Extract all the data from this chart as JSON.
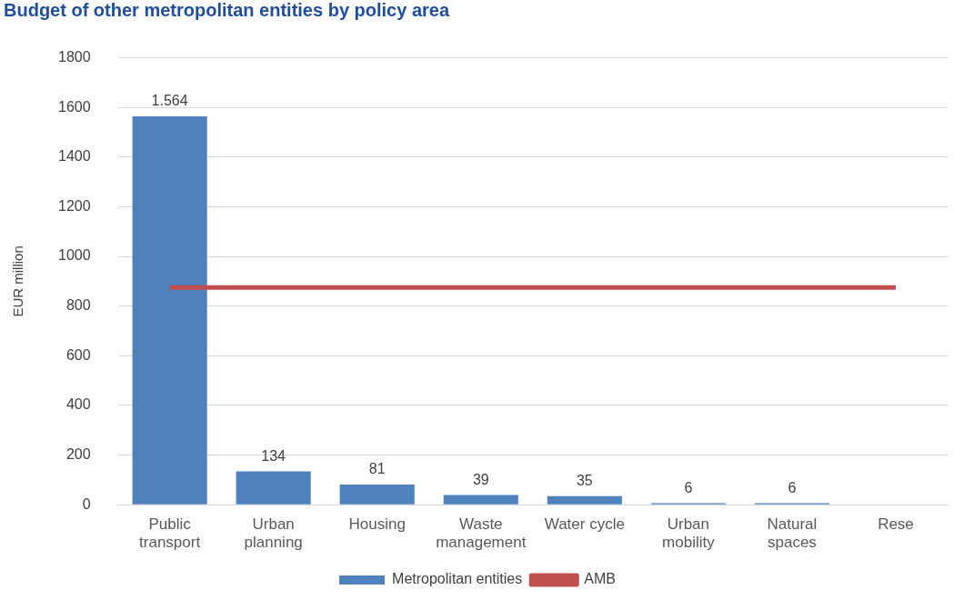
{
  "chart_data": {
    "type": "bar",
    "title": "Budget of other metropolitan entities by policy area",
    "ylabel": "EUR million",
    "categories": [
      "Public\ntransport",
      "Urban\nplanning",
      "Housing",
      "Waste\nmanagement",
      "Water cycle",
      "Urban\nmobility",
      "Natural\nspaces",
      "Rese"
    ],
    "series": [
      {
        "name": "Metropolitan entities",
        "color": "#4f81bd",
        "values": [
          1564,
          134,
          81,
          39,
          35,
          6,
          6,
          null
        ],
        "value_labels": [
          "1.564",
          "134",
          "81",
          "39",
          "35",
          "6",
          "6",
          null
        ]
      },
      {
        "name": "AMB",
        "type": "line",
        "color": "#c0504d",
        "values": [
          875,
          875,
          875,
          875,
          875,
          875,
          875,
          875
        ]
      }
    ],
    "ylim": [
      0,
      1800
    ],
    "yticks": [
      0,
      200,
      400,
      600,
      800,
      1000,
      1200,
      1400,
      1600,
      1800
    ],
    "grid": "y",
    "legend": "bottom",
    "marker": "none"
  }
}
